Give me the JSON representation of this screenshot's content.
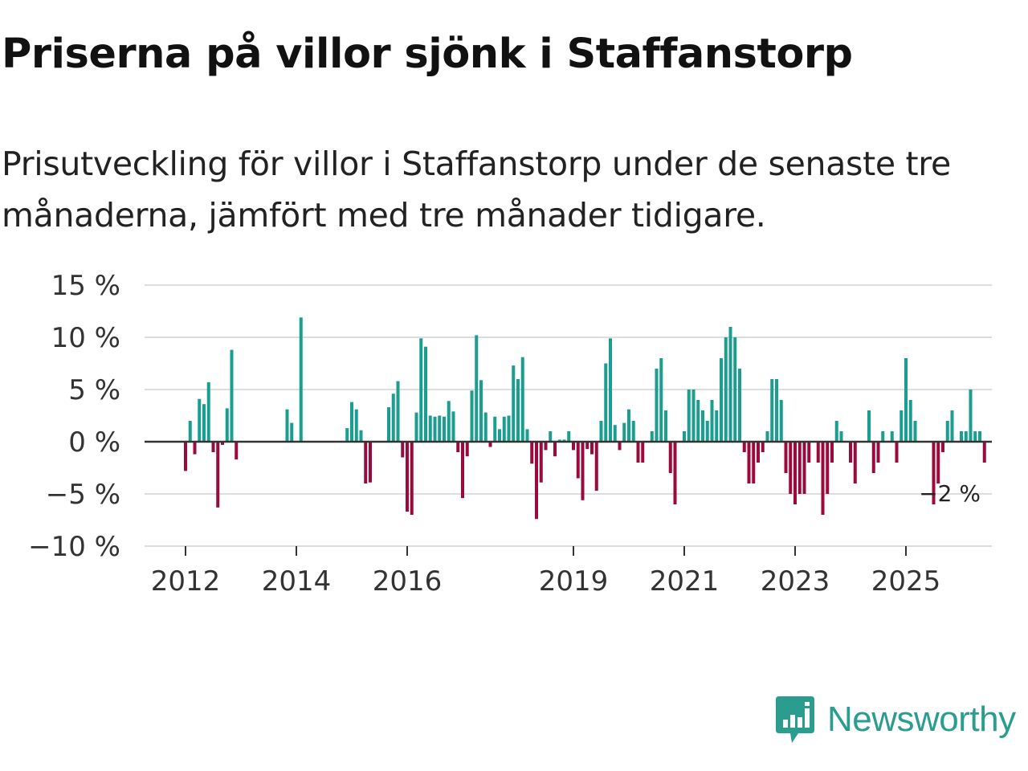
{
  "title": "Priserna på villor sjönk i Staffanstorp",
  "subtitle": "Prisutveckling för villor i Staffanstorp under de senaste tre månaderna, jämfört med tre månader tidigare.",
  "logo": {
    "text": "Newsworthy",
    "icon": "newsworthy-logo-icon",
    "color": "#2a9d8f"
  },
  "colors": {
    "positive": "#1a9e8f",
    "negative": "#9b0a3d",
    "grid": "#dddddd",
    "zero": "#333333"
  },
  "chart_data": {
    "type": "bar",
    "title": "",
    "xlabel": "",
    "ylabel": "",
    "ylim": [
      -10,
      15
    ],
    "y_ticks": [
      -10,
      -5,
      0,
      5,
      10,
      15
    ],
    "y_tick_labels": [
      "−10 %",
      "−5 %",
      "0 %",
      "5 %",
      "10 %",
      "15 %"
    ],
    "x_ticks": [
      2012,
      2014,
      2016,
      2019,
      2021,
      2023,
      2025
    ],
    "x_tick_labels": [
      "2012",
      "2014",
      "2016",
      "2019",
      "2021",
      "2023",
      "2025"
    ],
    "start": "2012-01",
    "frequency": "monthly",
    "values": [
      -2.8,
      2.0,
      -1.2,
      4.1,
      3.6,
      5.7,
      -1.0,
      -6.3,
      -0.3,
      3.2,
      8.8,
      -1.7,
      0,
      0,
      0,
      0,
      0,
      0,
      0,
      0,
      0,
      0,
      3.1,
      1.8,
      0,
      11.9,
      0,
      0,
      0,
      0,
      0,
      0,
      0,
      0,
      0,
      1.3,
      3.8,
      3.1,
      1.1,
      -4.0,
      -3.9,
      0,
      0,
      0,
      3.3,
      4.6,
      5.8,
      -1.5,
      -6.7,
      -7.0,
      2.8,
      9.9,
      9.1,
      2.5,
      2.4,
      2.5,
      2.4,
      3.9,
      2.9,
      -1.0,
      -5.4,
      -1.4,
      4.9,
      10.2,
      5.9,
      2.8,
      -0.5,
      2.4,
      1.2,
      2.4,
      2.5,
      7.3,
      6.0,
      8.1,
      1.2,
      -2.1,
      -7.4,
      -3.9,
      -0.8,
      1.0,
      -1.4,
      0.2,
      0.2,
      1.0,
      -0.8,
      -3.5,
      -5.6,
      -0.7,
      -1.2,
      -4.7,
      2.0,
      7.5,
      9.9,
      1.6,
      -0.8,
      1.8,
      3.1,
      2.0,
      -2.0,
      -2.0,
      0,
      1.0,
      7.0,
      8.0,
      3.0,
      -3.0,
      -6.0,
      0,
      1.0,
      5.0,
      5.0,
      4.0,
      3.0,
      2.0,
      4.0,
      3.0,
      8.0,
      10.0,
      11.0,
      10.0,
      7.0,
      -1.0,
      -4.0,
      -4.0,
      -2.0,
      -1.0,
      1.0,
      6.0,
      6.0,
      4.0,
      -3.0,
      -5.0,
      -6.0,
      -5.0,
      -5.0,
      -2.0,
      0,
      -2.0,
      -7.0,
      -5.0,
      -2.0,
      2.0,
      1.0,
      0,
      -2.0,
      -4.0,
      0,
      0,
      3.0,
      -3.0,
      -2.0,
      1.0,
      0,
      1.0,
      -2.0,
      3.0,
      8.0,
      4.0,
      2.0,
      0,
      0,
      0,
      -6.0,
      -4.0,
      -1.0,
      2.0,
      3.0,
      0,
      1.0,
      1.0,
      5.0,
      1.0,
      1.0,
      -2.0
    ],
    "last_value_label": "−2 %"
  }
}
